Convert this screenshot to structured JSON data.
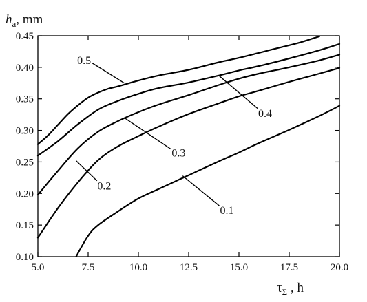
{
  "chart_data": {
    "type": "line",
    "title": "",
    "ylabel": {
      "symbol": "h",
      "subscript": "a",
      "unit": ", mm"
    },
    "xlabel": {
      "symbol": "τ",
      "subscript": "Σ",
      "unit": " , h"
    },
    "xlim": [
      5.0,
      20.0
    ],
    "ylim": [
      0.1,
      0.45
    ],
    "xticks": [
      "5.0",
      "7.5",
      "10.0",
      "12.5",
      "15.0",
      "17.5",
      "20.0"
    ],
    "yticks": [
      "0.10",
      "0.15",
      "0.20",
      "0.25",
      "0.30",
      "0.35",
      "0.40",
      "0.45"
    ],
    "grid": false,
    "series": [
      {
        "name": "0.5",
        "x": [
          5.0,
          5.5,
          6.0,
          6.5,
          7.0,
          7.5,
          8.0,
          8.5,
          9.0,
          10.0,
          11.0,
          12.5,
          14.0,
          15.0,
          16.0,
          17.0,
          18.0,
          19.0
        ],
        "y": [
          0.278,
          0.292,
          0.309,
          0.326,
          0.34,
          0.352,
          0.36,
          0.366,
          0.37,
          0.379,
          0.387,
          0.396,
          0.408,
          0.415,
          0.423,
          0.431,
          0.439,
          0.449
        ]
      },
      {
        "name": "0.4",
        "x": [
          5.0,
          6.0,
          7.0,
          8.0,
          9.0,
          10.0,
          11.0,
          12.5,
          14.0,
          15.0,
          16.0,
          17.5,
          19.0,
          20.0
        ],
        "y": [
          0.26,
          0.283,
          0.31,
          0.333,
          0.347,
          0.358,
          0.367,
          0.376,
          0.387,
          0.395,
          0.402,
          0.414,
          0.427,
          0.437
        ]
      },
      {
        "name": "0.3",
        "x": [
          5.0,
          6.0,
          7.0,
          8.0,
          9.0,
          10.0,
          11.0,
          12.5,
          14.0,
          15.0,
          16.0,
          17.5,
          19.0,
          20.0
        ],
        "y": [
          0.198,
          0.236,
          0.272,
          0.298,
          0.315,
          0.329,
          0.341,
          0.356,
          0.372,
          0.382,
          0.39,
          0.4,
          0.411,
          0.42
        ]
      },
      {
        "name": "0.2",
        "x": [
          5.0,
          6.0,
          7.0,
          8.0,
          9.0,
          10.0,
          11.0,
          12.5,
          14.0,
          15.0,
          16.0,
          17.5,
          19.0,
          20.0
        ],
        "y": [
          0.13,
          0.177,
          0.218,
          0.253,
          0.275,
          0.291,
          0.306,
          0.326,
          0.343,
          0.354,
          0.363,
          0.377,
          0.39,
          0.399
        ]
      },
      {
        "name": "0.1",
        "x": [
          6.9,
          7.5,
          8.0,
          9.0,
          10.0,
          11.0,
          12.5,
          14.0,
          15.0,
          16.0,
          17.5,
          19.0,
          20.0
        ],
        "y": [
          0.1,
          0.133,
          0.15,
          0.172,
          0.192,
          0.207,
          0.229,
          0.251,
          0.265,
          0.28,
          0.301,
          0.323,
          0.339
        ]
      }
    ],
    "annotations": [
      {
        "series": "0.5",
        "text": "0.5",
        "label_at": [
          7.3,
          0.412
        ],
        "points_to": [
          9.3,
          0.375
        ]
      },
      {
        "series": "0.4",
        "text": "0.4",
        "label_at": [
          16.3,
          0.328
        ],
        "points_to": [
          14.0,
          0.387
        ]
      },
      {
        "series": "0.3",
        "text": "0.3",
        "label_at": [
          12.0,
          0.265
        ],
        "points_to": [
          9.3,
          0.32
        ]
      },
      {
        "series": "0.2",
        "text": "0.2",
        "label_at": [
          8.3,
          0.213
        ],
        "points_to": [
          6.9,
          0.252
        ]
      },
      {
        "series": "0.1",
        "text": "0.1",
        "label_at": [
          14.4,
          0.174
        ],
        "points_to": [
          12.2,
          0.228
        ]
      }
    ]
  }
}
